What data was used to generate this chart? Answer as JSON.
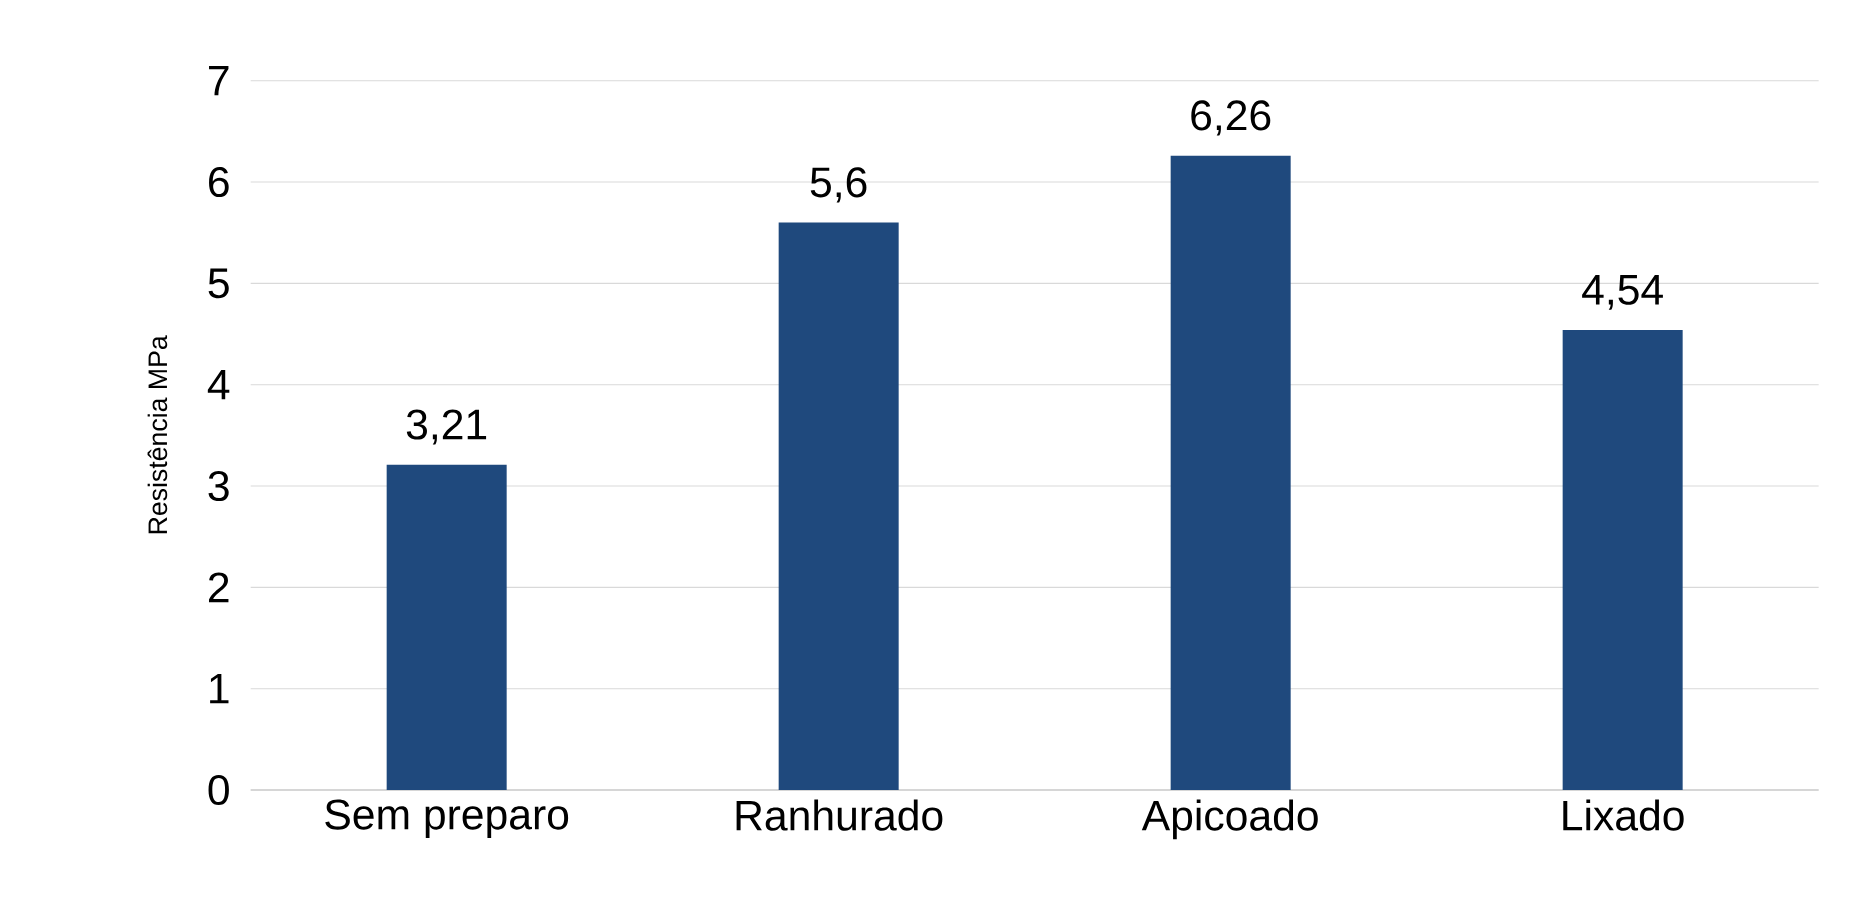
{
  "chart_data": {
    "type": "bar",
    "ylabel": "Resistência MPa",
    "categories": [
      "Sem preparo",
      "Ranhurado",
      "Apicoado",
      "Lixado"
    ],
    "values": [
      3.21,
      5.6,
      6.26,
      4.54
    ],
    "value_labels": [
      "3,21",
      "5,6",
      "6,26",
      "4,54"
    ],
    "color": "#1f497d",
    "ylim": [
      0,
      7
    ],
    "yticks": [
      0,
      1,
      2,
      3,
      4,
      5,
      6,
      7
    ],
    "grid": "y"
  }
}
